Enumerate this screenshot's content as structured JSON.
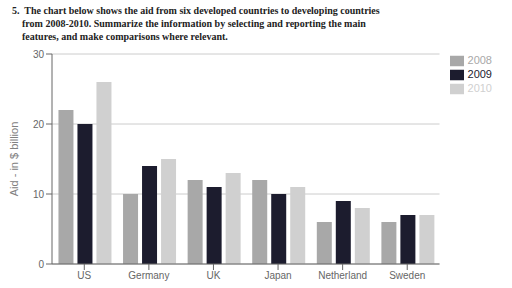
{
  "chart_data": {
    "type": "bar",
    "title": "5.  The chart below shows the aid from six developed countries to developing countries\n    from 2008-2010. Summarize the information by selecting and reporting the main\n    features, and make comparisons where relevant.",
    "categories": [
      "US",
      "Germany",
      "UK",
      "Japan",
      "Netherland",
      "Sweden"
    ],
    "series": [
      {
        "name": "2008",
        "color": "#a8a8a8",
        "values": [
          22,
          10,
          12,
          12,
          6,
          6
        ]
      },
      {
        "name": "2009",
        "color": "#1c1c2e",
        "values": [
          20,
          14,
          11,
          10,
          9,
          7
        ]
      },
      {
        "name": "2010",
        "color": "#d0d0d0",
        "values": [
          26,
          15,
          13,
          11,
          8,
          7
        ]
      }
    ],
    "ylabel": "Aid - in $ billion",
    "ylim": [
      0,
      30
    ],
    "yticks": [
      0,
      10,
      20,
      30
    ],
    "grid": true,
    "legend": "right"
  }
}
